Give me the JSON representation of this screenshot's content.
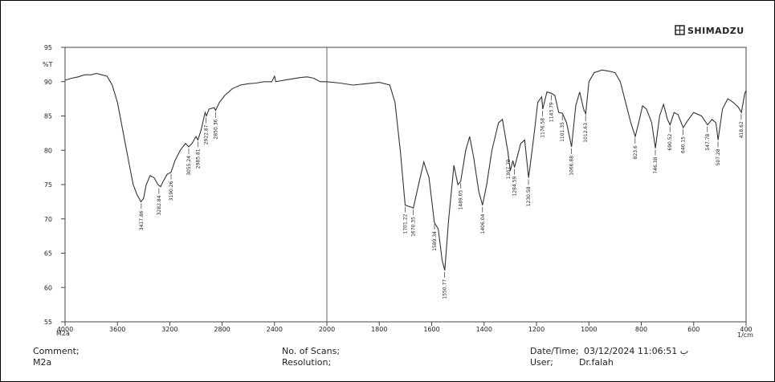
{
  "header": {
    "brand": "SHIMADZU"
  },
  "chart_data": {
    "type": "line",
    "y_label": "%T",
    "x_label": "1/cm",
    "x_sublabel": "M2a",
    "color": "#333333",
    "xlim": [
      4000,
      400
    ],
    "x_break": 2000,
    "ylim": [
      55,
      95
    ],
    "xticks": [
      4000,
      3600,
      3200,
      2800,
      2400,
      2000,
      1800,
      1600,
      1400,
      1200,
      1000,
      800,
      600,
      400
    ],
    "yticks": [
      55,
      60,
      65,
      70,
      75,
      80,
      85,
      90,
      95
    ],
    "x": [
      4000,
      3950,
      3900,
      3850,
      3800,
      3760,
      3720,
      3680,
      3640,
      3600,
      3560,
      3520,
      3480,
      3450,
      3420,
      3400,
      3380,
      3350,
      3320,
      3290,
      3270,
      3250,
      3220,
      3190,
      3160,
      3120,
      3080,
      3055,
      3030,
      3000,
      2985,
      2960,
      2930,
      2920,
      2900,
      2860,
      2850,
      2820,
      2780,
      2720,
      2660,
      2600,
      2540,
      2480,
      2420,
      2400,
      2390,
      2300,
      2200,
      2150,
      2100,
      2050,
      2000,
      1950,
      1900,
      1850,
      1800,
      1760,
      1740,
      1720,
      1701,
      1685,
      1670,
      1650,
      1630,
      1610,
      1590,
      1575,
      1560,
      1550,
      1535,
      1515,
      1500,
      1489,
      1470,
      1455,
      1440,
      1420,
      1406,
      1390,
      1370,
      1345,
      1330,
      1310,
      1300,
      1290,
      1284,
      1260,
      1245,
      1230,
      1210,
      1195,
      1180,
      1176,
      1160,
      1143,
      1130,
      1115,
      1101,
      1085,
      1066,
      1050,
      1035,
      1020,
      1012,
      1000,
      980,
      950,
      920,
      900,
      880,
      860,
      840,
      823,
      810,
      795,
      780,
      760,
      746,
      730,
      715,
      700,
      690,
      675,
      660,
      640,
      620,
      600,
      570,
      547,
      530,
      515,
      507,
      490,
      470,
      450,
      430,
      418,
      405,
      400
    ],
    "series": [
      {
        "name": "M2a",
        "values": [
          90.2,
          90.5,
          90.7,
          91.0,
          91.0,
          91.2,
          91.0,
          90.8,
          89.5,
          87,
          83,
          79,
          75,
          73.5,
          72.5,
          73,
          75,
          76.3,
          76,
          75,
          74.7,
          75.5,
          76.5,
          76.8,
          78.5,
          80,
          81,
          80.5,
          81,
          82,
          81.5,
          83,
          85.5,
          85,
          86,
          86.2,
          85.8,
          87,
          88,
          89,
          89.5,
          89.7,
          89.8,
          90,
          90,
          90.8,
          90,
          90.3,
          90.6,
          90.7,
          90.5,
          90.0,
          90.0,
          89.8,
          89.5,
          89.7,
          89.9,
          89.5,
          87,
          80,
          72,
          71.8,
          71.6,
          75,
          78.3,
          76,
          69.5,
          68.5,
          64,
          62.5,
          70,
          77.8,
          75,
          75.5,
          80,
          82,
          79,
          74,
          72,
          75,
          80,
          84,
          84.5,
          80,
          77,
          78.5,
          77.5,
          81,
          81.5,
          76,
          82,
          87,
          87.8,
          86,
          88.5,
          88.3,
          88,
          85.5,
          85.4,
          84,
          80.5,
          86.5,
          88.5,
          86,
          85.3,
          90,
          91.3,
          91.7,
          91.5,
          91.3,
          90,
          87,
          84,
          82,
          84,
          86.5,
          86,
          84,
          80.3,
          85,
          86.7,
          84.5,
          83.7,
          85.5,
          85.2,
          83.3,
          84.5,
          85.5,
          85,
          83.7,
          84.5,
          84,
          81.5,
          86,
          87.5,
          87,
          86.3,
          85.5,
          88.3,
          88.7
        ]
      }
    ],
    "peaks": [
      {
        "x": 3417.86,
        "y": 72.5
      },
      {
        "x": 3282.84,
        "y": 74.7
      },
      {
        "x": 3190.26,
        "y": 76.8
      },
      {
        "x": 3055.24,
        "y": 80.5
      },
      {
        "x": 2985.81,
        "y": 81.5
      },
      {
        "x": 2922.87,
        "y": 85
      },
      {
        "x": 2850.36,
        "y": 85.8
      },
      {
        "x": 1701.22,
        "y": 72
      },
      {
        "x": 1670.35,
        "y": 71.6
      },
      {
        "x": 1589.34,
        "y": 69.5
      },
      {
        "x": 1550.77,
        "y": 62.5
      },
      {
        "x": 1489.05,
        "y": 75.5
      },
      {
        "x": 1406.04,
        "y": 72
      },
      {
        "x": 1307.79,
        "y": 80
      },
      {
        "x": 1284.59,
        "y": 77.5
      },
      {
        "x": 1230.58,
        "y": 76
      },
      {
        "x": 1176.58,
        "y": 86
      },
      {
        "x": 1143.79,
        "y": 88.3
      },
      {
        "x": 1101.35,
        "y": 85.4
      },
      {
        "x": 1066.88,
        "y": 80.5
      },
      {
        "x": 1012.63,
        "y": 85.3
      },
      {
        "x": 823.6,
        "y": 82
      },
      {
        "x": 746.38,
        "y": 80.3
      },
      {
        "x": 690.52,
        "y": 83.7
      },
      {
        "x": 640.15,
        "y": 83.3
      },
      {
        "x": 547.78,
        "y": 83.7
      },
      {
        "x": 507.28,
        "y": 81.5
      },
      {
        "x": 418.62,
        "y": 85.5
      }
    ]
  },
  "footer": {
    "comment_label": "Comment;",
    "comment": "M2a",
    "scans_label": "No. of Scans;",
    "resolution_label": "Resolution;",
    "datetime_label": "Date/Time;",
    "datetime": "03/12/2024 11:06:51 ب",
    "user_label": "User;",
    "user": "Dr.falah"
  }
}
